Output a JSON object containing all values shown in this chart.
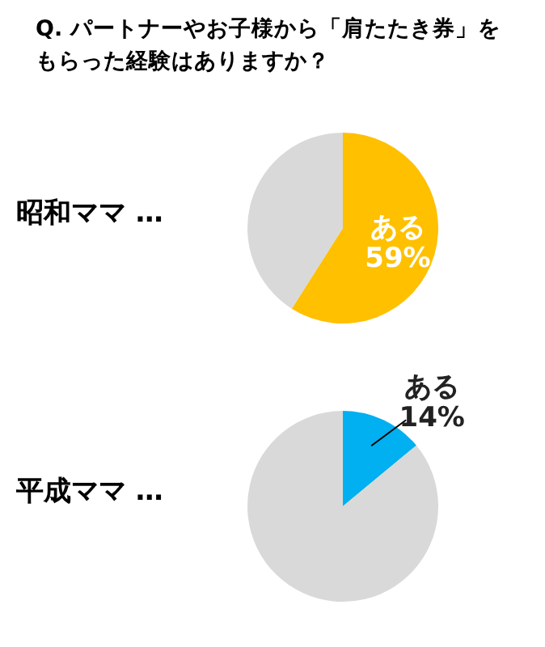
{
  "chart_data": [
    {
      "type": "pie",
      "title": "Q. パートナーやお子様から「肩たたき券」をもらった経験はありますか？",
      "subtitle": "昭和ママ …",
      "categories": [
        "ある",
        null
      ],
      "values": [
        59,
        41
      ],
      "colors": [
        "#ffc000",
        "#d9d9d9"
      ],
      "value_labels": [
        "59%",
        null
      ],
      "legend": false
    },
    {
      "type": "pie",
      "subtitle": "平成ママ …",
      "categories": [
        "ある",
        null
      ],
      "values": [
        14,
        86
      ],
      "colors": [
        "#00b0f0",
        "#d9d9d9"
      ],
      "value_labels": [
        "14%",
        null
      ],
      "legend": false
    }
  ]
}
